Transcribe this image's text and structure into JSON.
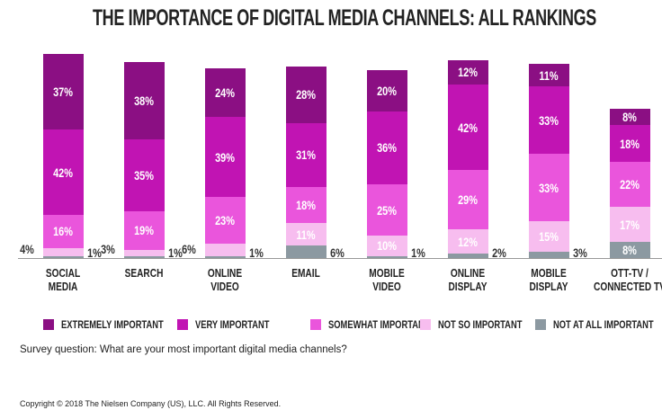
{
  "chart_data": {
    "type": "stacked-bar",
    "title": "THE IMPORTANCE OF DIGITAL MEDIA CHANNELS: ALL RANKINGS",
    "categories": [
      "SOCIAL\nMEDIA",
      "SEARCH",
      "ONLINE\nVIDEO",
      "EMAIL",
      "MOBILE\nVIDEO",
      "ONLINE\nDISPLAY",
      "MOBILE\nDISPLAY",
      "OTT-TV /\nCONNECTED TV"
    ],
    "series": [
      {
        "name": "NOT AT ALL IMPORTANT",
        "color": "#8c99a1",
        "values": [
          1,
          1,
          1,
          6,
          1,
          2,
          3,
          8
        ],
        "value_labels": [
          "1%",
          "1%",
          "1%",
          "6%",
          "1%",
          "2%",
          "3%",
          "8%"
        ]
      },
      {
        "name": "NOT SO IMPORTANT",
        "color": "#f7bdef",
        "values": [
          4,
          3,
          6,
          11,
          10,
          12,
          15,
          17
        ],
        "value_labels": [
          "4%",
          "3%",
          "6%",
          "11%",
          "10%",
          "12%",
          "15%",
          "17%"
        ]
      },
      {
        "name": "SOMEWHAT IMPORTANT",
        "color": "#ea55dc",
        "values": [
          16,
          19,
          23,
          18,
          25,
          29,
          33,
          22
        ],
        "value_labels": [
          "16%",
          "19%",
          "23%",
          "18%",
          "25%",
          "29%",
          "33%",
          "22%"
        ]
      },
      {
        "name": "VERY IMPORTANT",
        "color": "#c114b3",
        "values": [
          42,
          35,
          39,
          31,
          36,
          42,
          33,
          18
        ],
        "value_labels": [
          "42%",
          "35%",
          "39%",
          "31%",
          "36%",
          "42%",
          "33%",
          "18%"
        ]
      },
      {
        "name": "EXTREMELY IMPORTANT",
        "color": "#8b0f83",
        "values": [
          37,
          38,
          24,
          28,
          20,
          12,
          11,
          8
        ],
        "value_labels": [
          "37%",
          "38%",
          "24%",
          "28%",
          "20%",
          "12%",
          "11%",
          "8%"
        ]
      }
    ],
    "legend_order": [
      4,
      3,
      2,
      1,
      0
    ],
    "note": "Survey question: What are your most important digital media channels?",
    "copyright": "Copyright © 2018 The Nielsen Company (US), LLC. All Rights Reserved."
  }
}
